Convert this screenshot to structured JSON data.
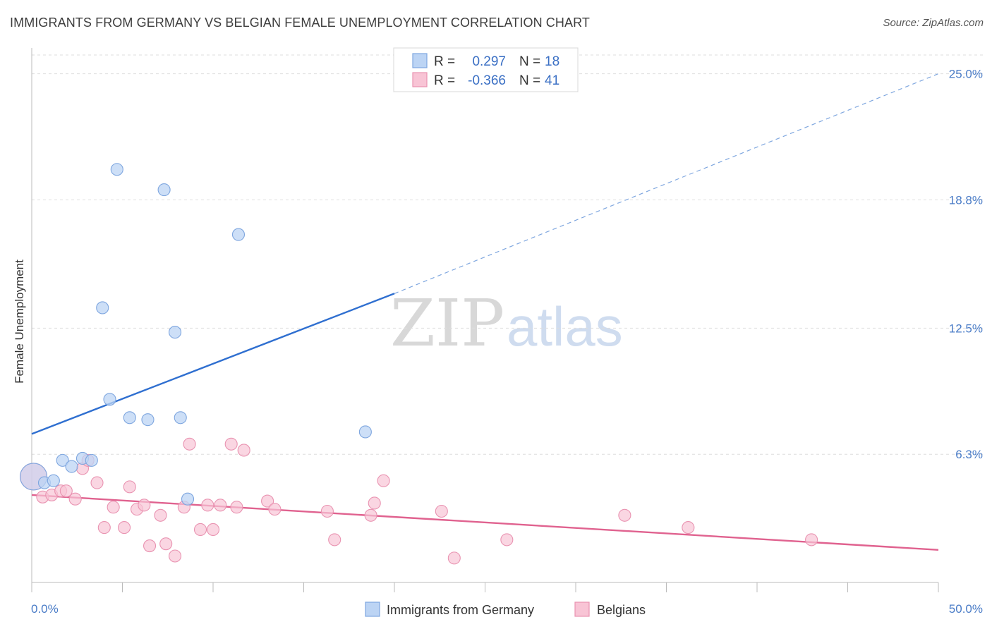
{
  "title": "IMMIGRANTS FROM GERMANY VS BELGIAN FEMALE UNEMPLOYMENT CORRELATION CHART",
  "source": "Source: ZipAtlas.com",
  "watermark": {
    "zip": "ZIP",
    "atlas": "atlas"
  },
  "colors": {
    "blue": "#2f6fd0",
    "blue_fill": "#bcd4f4",
    "pink": "#e0628f",
    "pink_fill": "#f8c4d5",
    "grid": "#dddddd",
    "axis_text": "#4a7cc7"
  },
  "legend": {
    "rows": [
      {
        "r_label": "R =",
        "r_value": "0.297",
        "n_label": "N =",
        "n_value": "18"
      },
      {
        "r_label": "R =",
        "r_value": "-0.366",
        "n_label": "N =",
        "n_value": "41"
      }
    ]
  },
  "bottom_legend": [
    "Immigrants from Germany",
    "Belgians"
  ],
  "chart_data": {
    "type": "scatter",
    "title": "IMMIGRANTS FROM GERMANY VS BELGIAN FEMALE UNEMPLOYMENT CORRELATION CHART",
    "xlabel": "",
    "ylabel": "Female Unemployment",
    "xlim": [
      0,
      50
    ],
    "ylim": [
      0,
      26.2
    ],
    "x_tick_labels": [
      "0.0%",
      "50.0%"
    ],
    "y_ticks": [
      6.3,
      12.5,
      18.8,
      25.0
    ],
    "y_tick_labels": [
      "6.3%",
      "12.5%",
      "18.8%",
      "25.0%"
    ],
    "grid": true,
    "series": [
      {
        "name": "Immigrants from Germany",
        "color": "#2f6fd0",
        "r": 0.297,
        "n": 18,
        "points": [
          {
            "x": 0.1,
            "y": 5.2,
            "big": true
          },
          {
            "x": 0.7,
            "y": 4.9
          },
          {
            "x": 1.2,
            "y": 5.0
          },
          {
            "x": 1.7,
            "y": 6.0
          },
          {
            "x": 2.2,
            "y": 5.7
          },
          {
            "x": 2.8,
            "y": 6.1
          },
          {
            "x": 3.3,
            "y": 6.0
          },
          {
            "x": 3.9,
            "y": 13.5
          },
          {
            "x": 4.3,
            "y": 9.0
          },
          {
            "x": 4.7,
            "y": 20.3
          },
          {
            "x": 5.4,
            "y": 8.1
          },
          {
            "x": 6.4,
            "y": 8.0
          },
          {
            "x": 7.3,
            "y": 19.3
          },
          {
            "x": 7.9,
            "y": 12.3
          },
          {
            "x": 8.2,
            "y": 8.1
          },
          {
            "x": 8.6,
            "y": 4.1
          },
          {
            "x": 11.4,
            "y": 17.1
          },
          {
            "x": 18.4,
            "y": 7.4
          }
        ],
        "trend": {
          "x0": 0,
          "y0": 7.3,
          "x1": 20,
          "y1": 14.2,
          "x_ext": 50,
          "y_ext": 25.0
        }
      },
      {
        "name": "Belgians",
        "color": "#e0628f",
        "r": -0.366,
        "n": 41,
        "points": [
          {
            "x": 0.1,
            "y": 5.2,
            "big": true
          },
          {
            "x": 0.6,
            "y": 4.2
          },
          {
            "x": 1.1,
            "y": 4.3
          },
          {
            "x": 1.6,
            "y": 4.5
          },
          {
            "x": 1.9,
            "y": 4.5
          },
          {
            "x": 2.4,
            "y": 4.1
          },
          {
            "x": 2.8,
            "y": 5.6
          },
          {
            "x": 3.1,
            "y": 6.0
          },
          {
            "x": 3.6,
            "y": 4.9
          },
          {
            "x": 4.0,
            "y": 2.7
          },
          {
            "x": 4.5,
            "y": 3.7
          },
          {
            "x": 5.1,
            "y": 2.7
          },
          {
            "x": 5.4,
            "y": 4.7
          },
          {
            "x": 5.8,
            "y": 3.6
          },
          {
            "x": 6.2,
            "y": 3.8
          },
          {
            "x": 6.5,
            "y": 1.8
          },
          {
            "x": 7.1,
            "y": 3.3
          },
          {
            "x": 7.4,
            "y": 1.9
          },
          {
            "x": 7.9,
            "y": 1.3
          },
          {
            "x": 8.4,
            "y": 3.7
          },
          {
            "x": 8.7,
            "y": 6.8
          },
          {
            "x": 9.3,
            "y": 2.6
          },
          {
            "x": 9.7,
            "y": 3.8
          },
          {
            "x": 10.0,
            "y": 2.6
          },
          {
            "x": 10.4,
            "y": 3.8
          },
          {
            "x": 11.0,
            "y": 6.8
          },
          {
            "x": 11.3,
            "y": 3.7
          },
          {
            "x": 11.7,
            "y": 6.5
          },
          {
            "x": 13.0,
            "y": 4.0
          },
          {
            "x": 13.4,
            "y": 3.6
          },
          {
            "x": 16.3,
            "y": 3.5
          },
          {
            "x": 16.7,
            "y": 2.1
          },
          {
            "x": 18.7,
            "y": 3.3
          },
          {
            "x": 18.9,
            "y": 3.9
          },
          {
            "x": 19.4,
            "y": 5.0
          },
          {
            "x": 22.6,
            "y": 3.5
          },
          {
            "x": 23.3,
            "y": 1.2
          },
          {
            "x": 26.2,
            "y": 2.1
          },
          {
            "x": 32.7,
            "y": 3.3
          },
          {
            "x": 36.2,
            "y": 2.7
          },
          {
            "x": 43.0,
            "y": 2.1
          }
        ],
        "trend": {
          "x0": 0,
          "y0": 4.3,
          "x1": 50,
          "y1": 1.6
        }
      }
    ]
  }
}
